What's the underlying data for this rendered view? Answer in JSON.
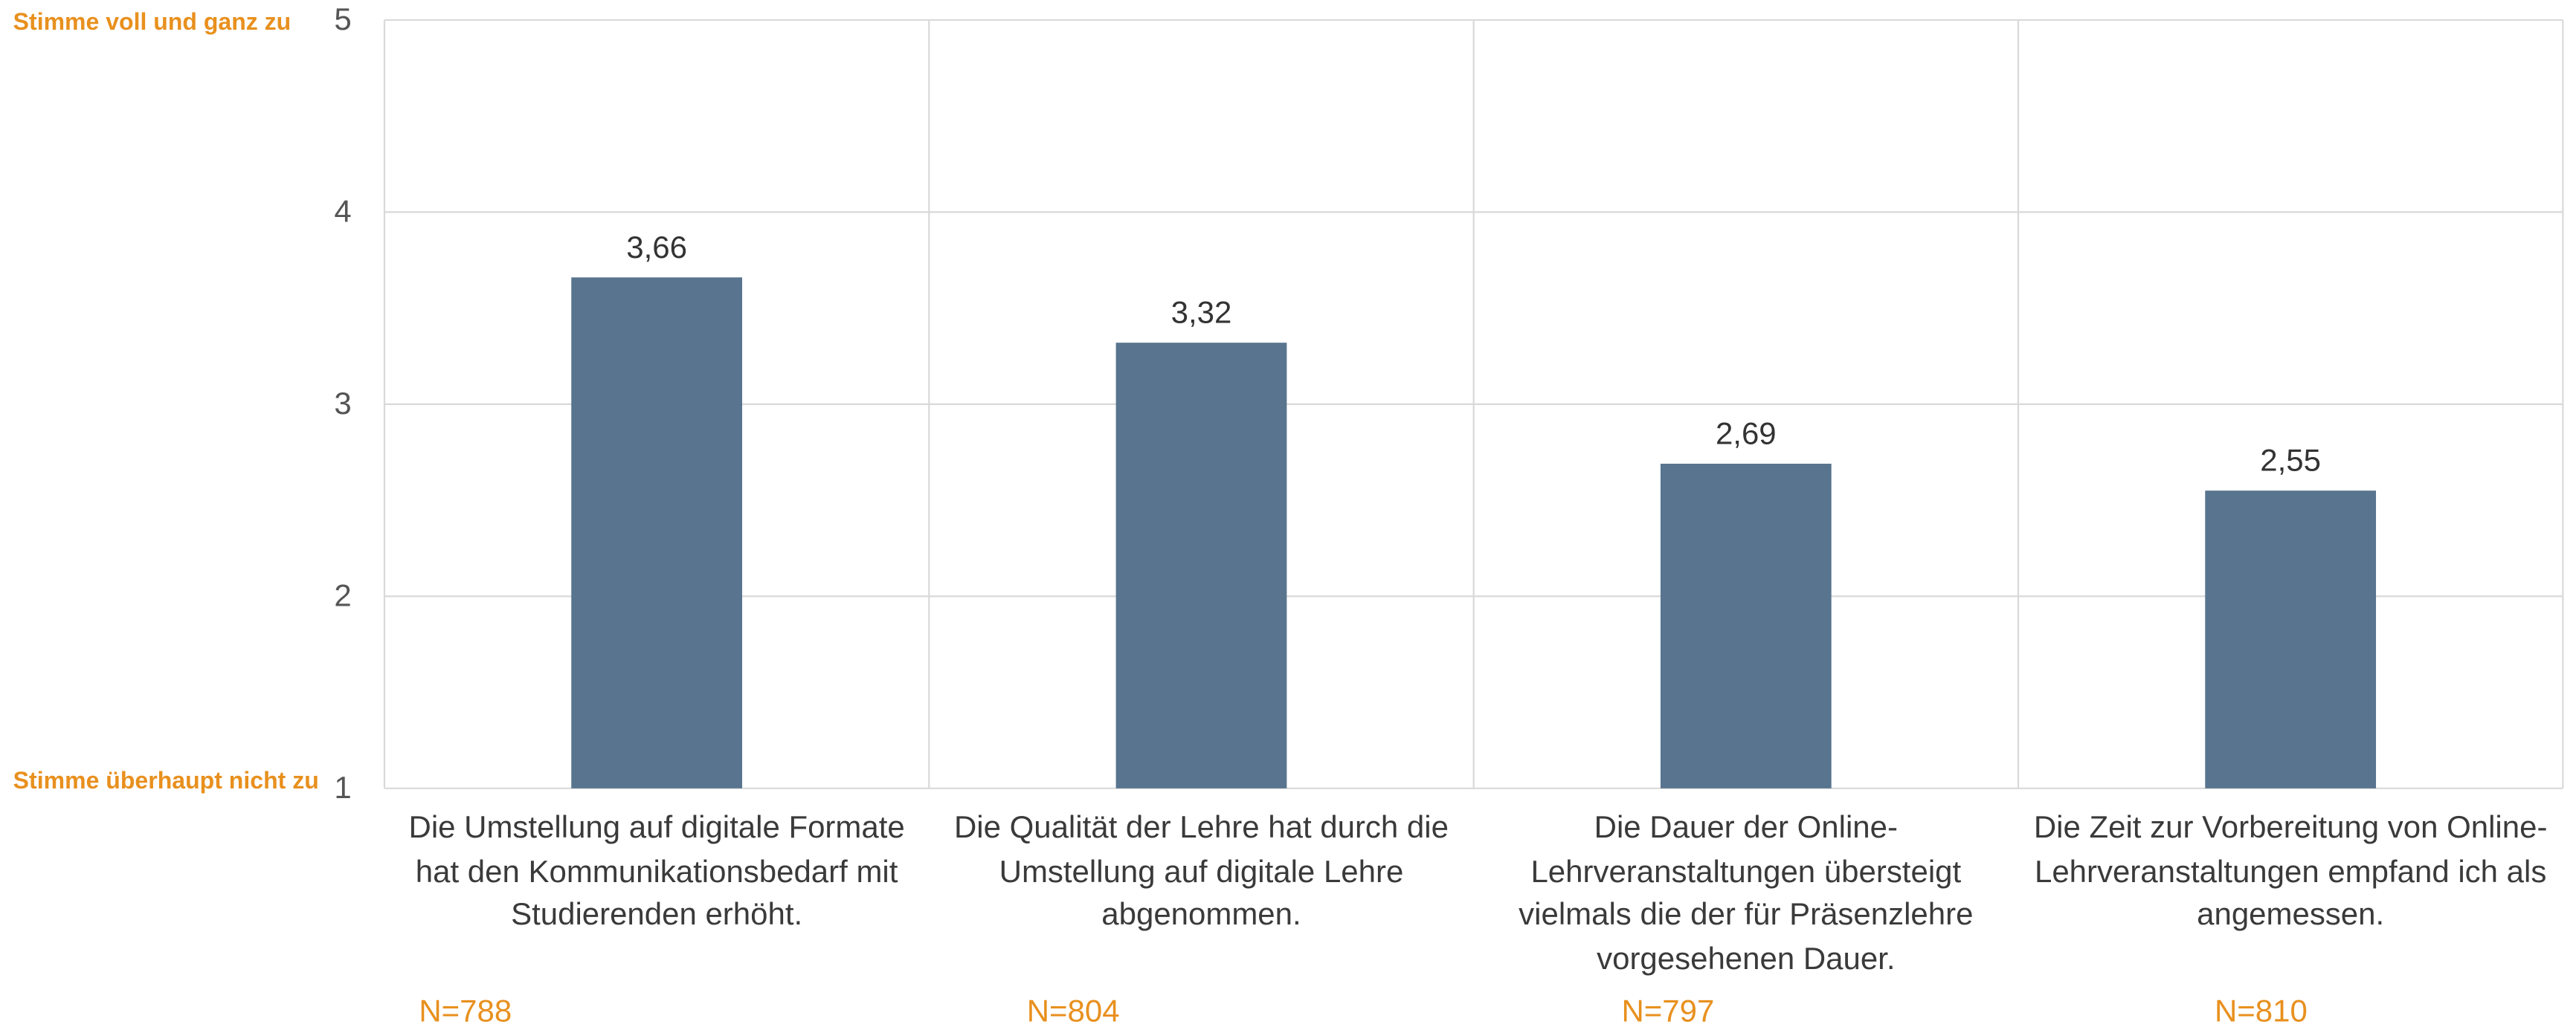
{
  "chart_data": {
    "type": "bar",
    "categories": [
      "Die Umstellung auf digitale Formate hat den Kommunikationsbedarf mit Studierenden erhöht.",
      "Die Qualität der Lehre hat durch die Umstellung auf digitale Lehre abgenommen.",
      "Die Dauer der Online-Lehrveranstaltungen übersteigt vielmals die der für Präsenzlehre vorgesehenen Dauer.",
      "Die Zeit zur Vorbereitung von Online-Lehrveranstaltungen empfand ich als angemessen."
    ],
    "values": [
      3.66,
      3.32,
      2.69,
      2.55
    ],
    "value_labels": [
      "3,66",
      "3,32",
      "2,69",
      "2,55"
    ],
    "sample_sizes": [
      "N=788",
      "N=804",
      "N=797",
      "N=810"
    ],
    "color": "#58748f",
    "ylim": [
      1,
      5
    ],
    "yticks": [
      1,
      2,
      3,
      4,
      5
    ],
    "grid": true,
    "scale_top_label": "Stimme voll und ganz zu",
    "scale_bottom_label": "Stimme überhaupt nicht zu"
  }
}
